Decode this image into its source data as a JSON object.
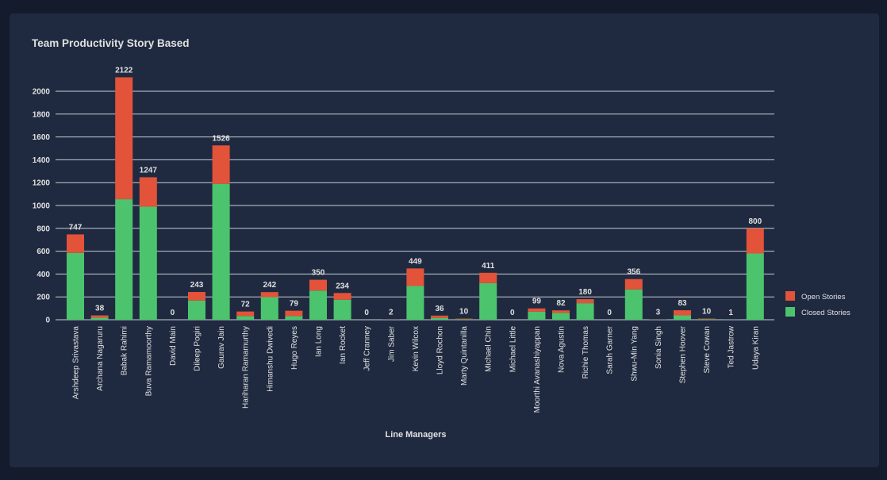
{
  "card": {
    "title": "Team Productivity Story Based"
  },
  "chart_data": {
    "type": "bar",
    "stacked": true,
    "title": "Team Productivity Story Based",
    "xlabel": "Line Managers",
    "ylabel": "",
    "ylim": [
      0,
      2200
    ],
    "yticks": [
      0,
      200,
      400,
      600,
      800,
      1000,
      1200,
      1400,
      1600,
      1800,
      2000
    ],
    "grid": true,
    "legend_position": "right",
    "categories": [
      "Arshdeep Srivastava",
      "Archana Nagaruru",
      "Babak Rahimi",
      "Buva Ramamoorthy",
      "David Main",
      "Dileep Pogiri",
      "Gaurav Jain",
      "Hariharan Ramamurthy",
      "Himanshu Dwivedi",
      "Hugo Reyes",
      "Ian Long",
      "Ian Rocket",
      "Jeff Cranney",
      "Jim Saber",
      "Kevin Wilcox",
      "Lloyd Rochon",
      "Marty Quintanilla",
      "Michael Chin",
      "Michael Little",
      "Moorthi Avanashiyappan",
      "Nova Agustin",
      "Richie Thomas",
      "Sarah Garner",
      "Shwu-Min Yang",
      "Sonia Singh",
      "Stephen Hoover",
      "Steve Cowan",
      "Ted Jastrow",
      "Udaya Kiran"
    ],
    "series": [
      {
        "name": "Closed Stories",
        "color": "#4cc46e",
        "values": [
          585,
          18,
          1055,
          990,
          0,
          168,
          1190,
          32,
          198,
          32,
          255,
          175,
          0,
          1,
          295,
          16,
          5,
          320,
          0,
          70,
          60,
          145,
          0,
          265,
          2,
          38,
          5,
          1,
          580
        ]
      },
      {
        "name": "Open Stories",
        "color": "#e2533a",
        "values": [
          162,
          20,
          1067,
          257,
          0,
          75,
          336,
          40,
          44,
          47,
          95,
          59,
          0,
          1,
          154,
          20,
          5,
          91,
          0,
          29,
          22,
          35,
          0,
          91,
          1,
          45,
          5,
          0,
          220
        ]
      }
    ],
    "totals": [
      747,
      38,
      2122,
      1247,
      0,
      243,
      1526,
      72,
      242,
      79,
      350,
      234,
      0,
      2,
      449,
      36,
      10,
      411,
      0,
      99,
      82,
      180,
      0,
      356,
      3,
      83,
      10,
      1,
      800
    ]
  }
}
